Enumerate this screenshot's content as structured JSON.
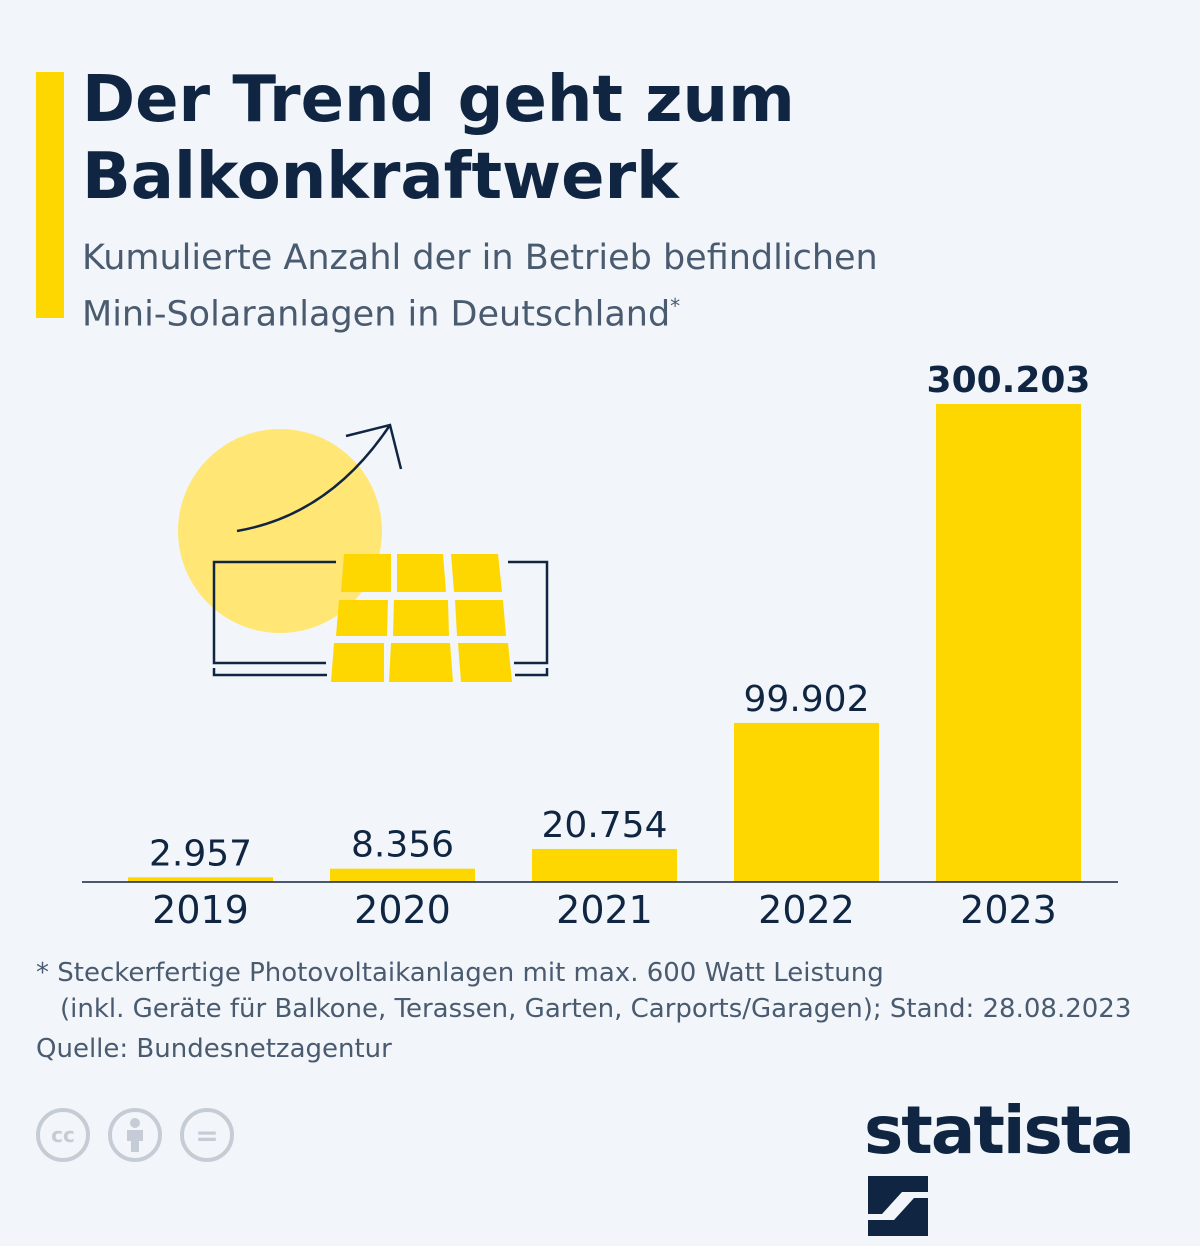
{
  "header": {
    "title_line1": "Der Trend geht zum",
    "title_line2": "Balkonkraftwerk",
    "subtitle_line1": "Kumulierte Anzahl der in Betrieb befindlichen",
    "subtitle_line2": "Mini-Solaranlagen in Deutschland",
    "subtitle_marker": "*"
  },
  "chart_data": {
    "type": "bar",
    "title": "Der Trend geht zum Balkonkraftwerk",
    "subtitle": "Kumulierte Anzahl der in Betrieb befindlichen Mini-Solaranlagen in Deutschland*",
    "categories": [
      "2019",
      "2020",
      "2021",
      "2022",
      "2023"
    ],
    "values": [
      2957,
      8356,
      20754,
      99902,
      300203
    ],
    "labels": [
      "2.957",
      "8.356",
      "20.754",
      "99.902",
      "300.203"
    ],
    "ylim": [
      0,
      300203
    ],
    "grid": false,
    "bar_color": "#ffd700",
    "highlight_last_label_bold": true
  },
  "footer": {
    "note_line1": "* Steckerfertige Photovoltaikanlagen mit max. 600 Watt Leistung",
    "note_line2": "(inkl. Geräte für Balkone, Terassen, Garten, Carports/Garagen); Stand: 28.08.2023",
    "source": "Quelle: Bundesnetzagentur",
    "license_icons": [
      "cc-icon",
      "attribution-icon",
      "no-derivatives-icon"
    ],
    "license_cc": "cc",
    "license_nd": "=",
    "brand": "statista"
  },
  "colors": {
    "accent": "#ffd700",
    "text": "#0f2542",
    "muted": "#4a5b70",
    "sun": "#ffe675"
  }
}
